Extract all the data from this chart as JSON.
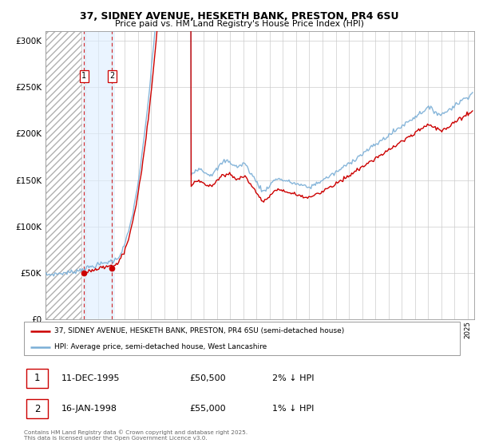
{
  "title_line1": "37, SIDNEY AVENUE, HESKETH BANK, PRESTON, PR4 6SU",
  "title_line2": "Price paid vs. HM Land Registry's House Price Index (HPI)",
  "xlim_start": 1993.0,
  "xlim_end": 2025.5,
  "ylim_min": 0,
  "ylim_max": 310000,
  "yticks": [
    0,
    50000,
    100000,
    150000,
    200000,
    250000,
    300000
  ],
  "ytick_labels": [
    "£0",
    "£50K",
    "£100K",
    "£150K",
    "£200K",
    "£250K",
    "£300K"
  ],
  "hatch_end_year": 1995.75,
  "purchase1_year": 1995.92,
  "purchase1_price": 50500,
  "purchase1_label": "1",
  "purchase2_year": 1998.04,
  "purchase2_price": 55000,
  "purchase2_label": "2",
  "legend_line1": "37, SIDNEY AVENUE, HESKETH BANK, PRESTON, PR4 6SU (semi-detached house)",
  "legend_line2": "HPI: Average price, semi-detached house, West Lancashire",
  "table_row1": [
    "1",
    "11-DEC-1995",
    "£50,500",
    "2% ↓ HPI"
  ],
  "table_row2": [
    "2",
    "16-JAN-1998",
    "£55,000",
    "1% ↓ HPI"
  ],
  "footer": "Contains HM Land Registry data © Crown copyright and database right 2025.\nThis data is licensed under the Open Government Licence v3.0.",
  "hpi_color": "#7aaed6",
  "price_color": "#cc0000",
  "background_color": "#ffffff",
  "grid_color": "#cccccc"
}
